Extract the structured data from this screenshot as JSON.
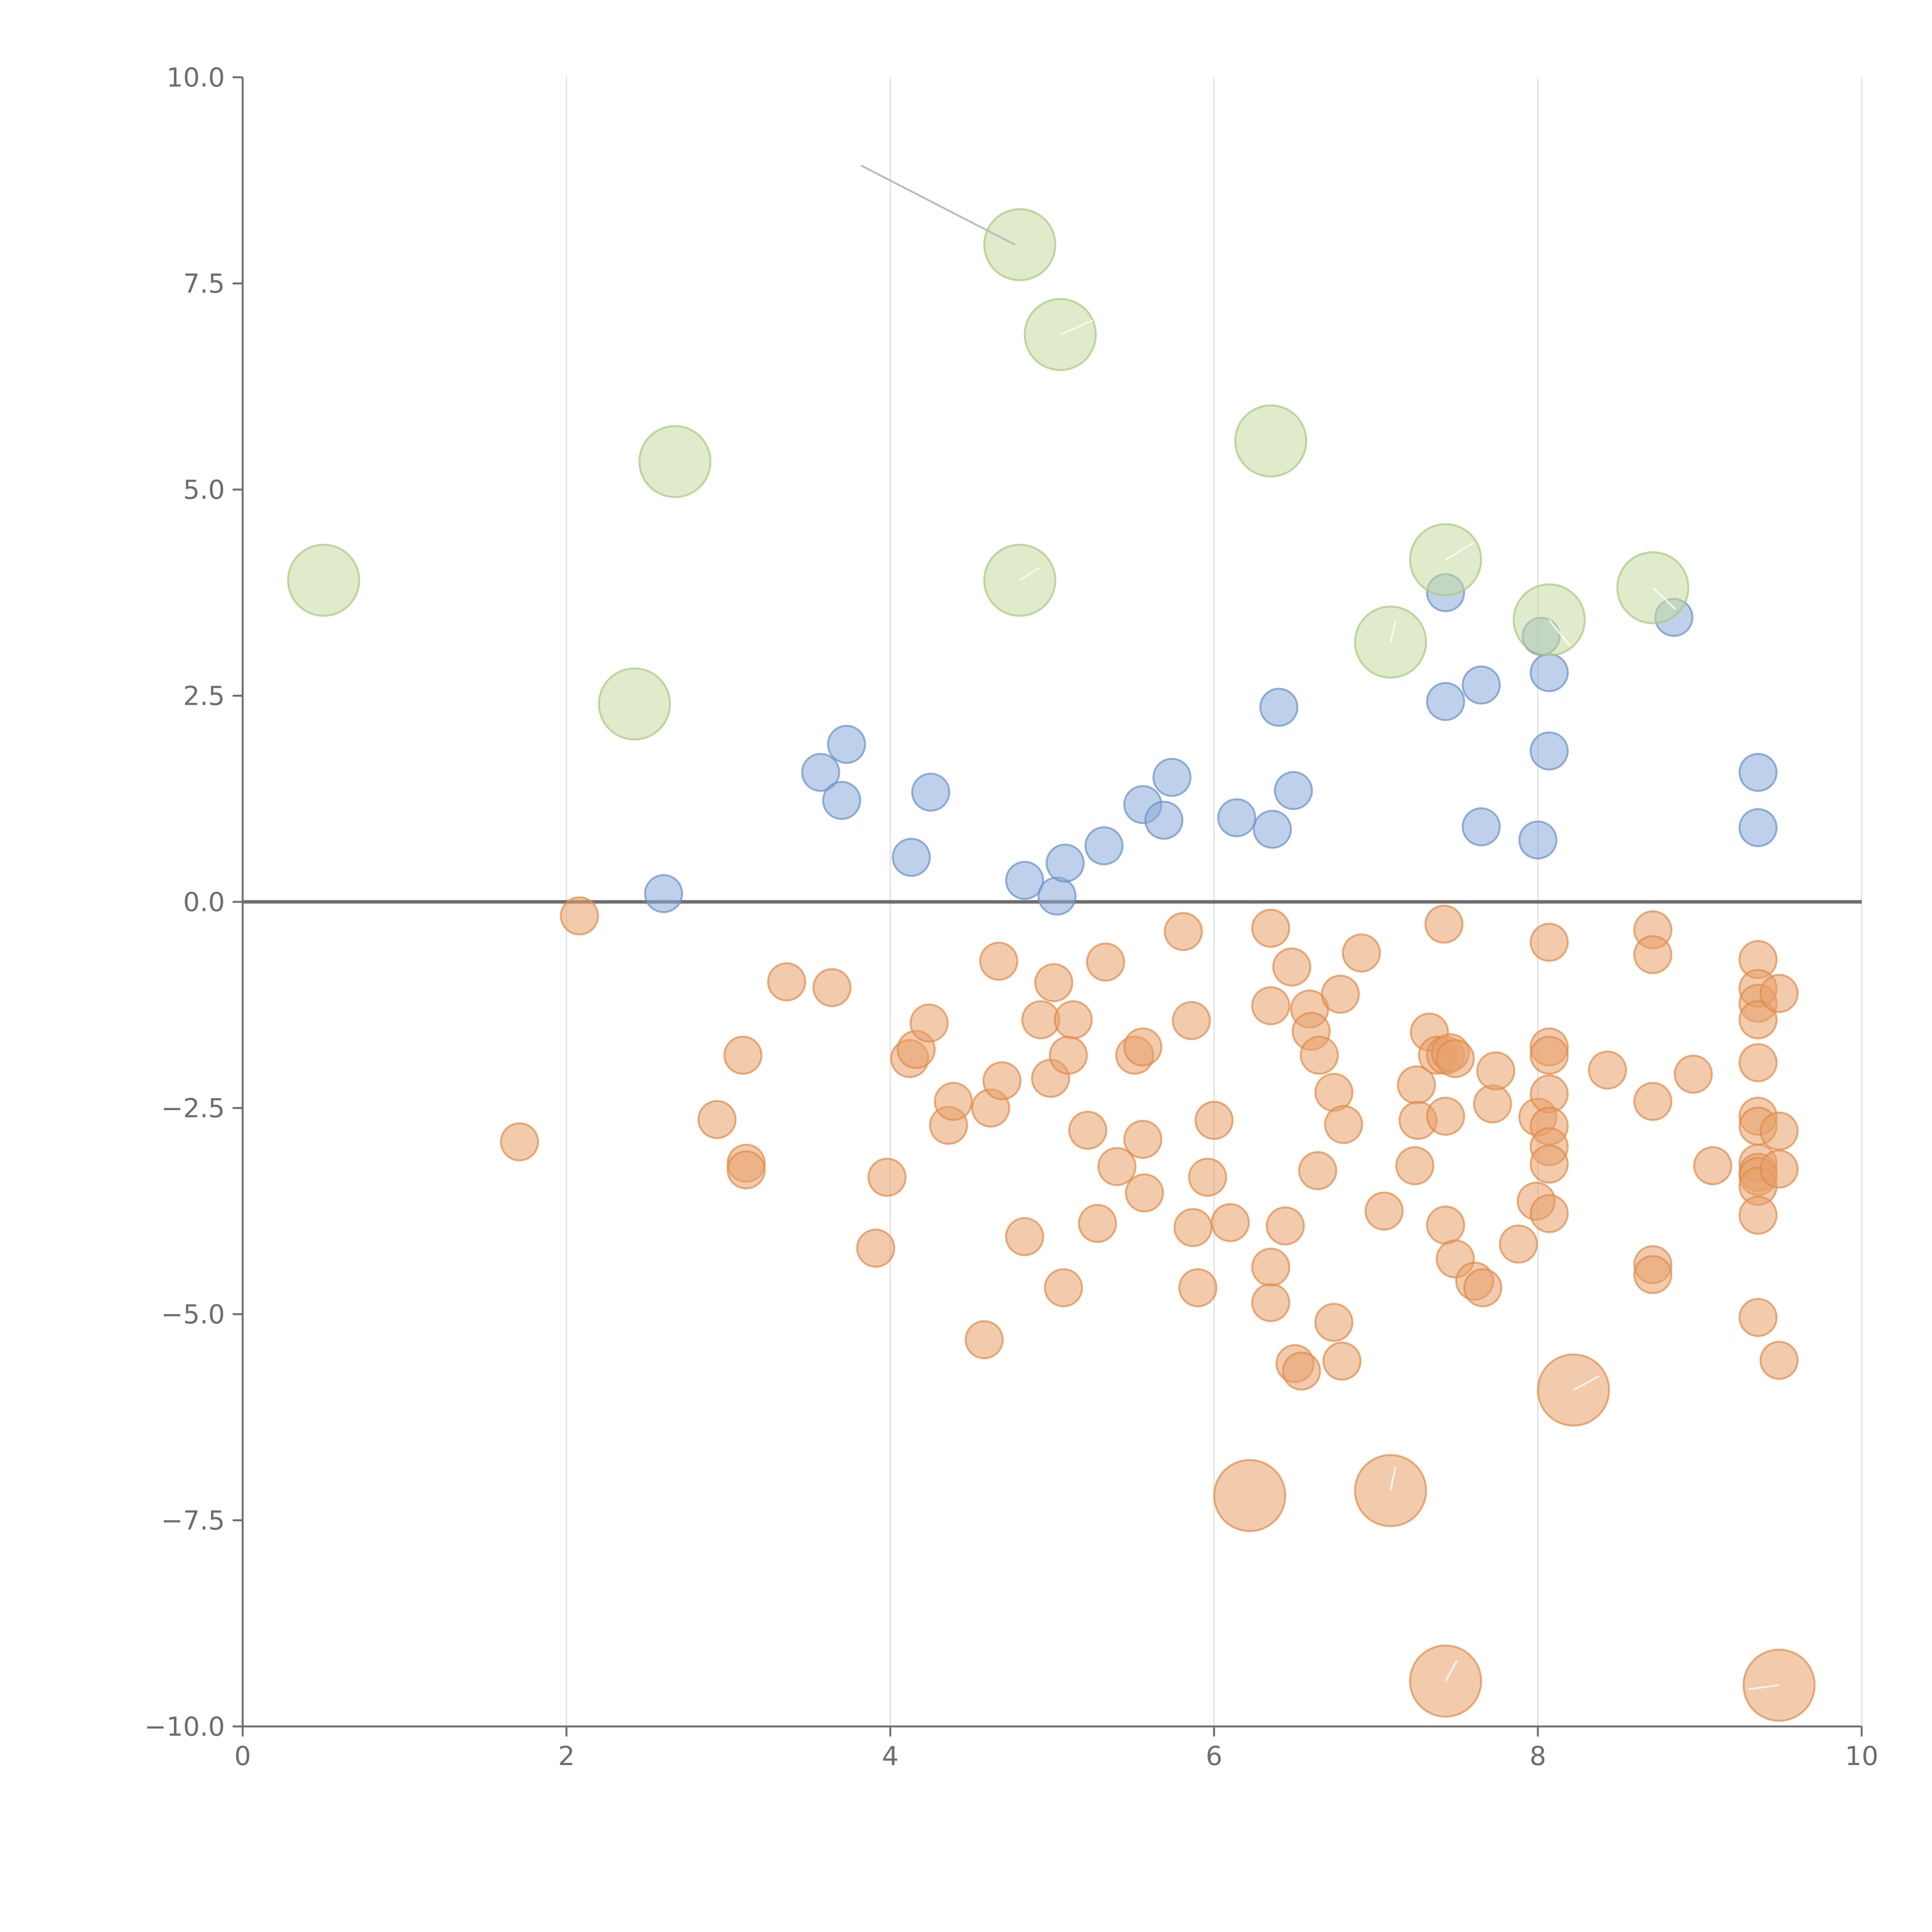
{
  "chart_data": {
    "type": "scatter",
    "title": "",
    "xlabel": "",
    "ylabel": "",
    "xlim": [
      0,
      10
    ],
    "ylim": [
      -10,
      10
    ],
    "grid": "vertical",
    "x_ticks": [
      0,
      2,
      4,
      6,
      8,
      10
    ],
    "x_tick_labels": [
      "0",
      "2",
      "4",
      "6",
      "8",
      "10"
    ],
    "y_ticks": [
      10,
      7.5,
      5,
      2.5,
      0,
      -2.5,
      -5,
      -7.5,
      -10
    ],
    "y_tick_labels": [
      "10.0",
      "7.5",
      "5.0",
      "2.5",
      "0.0",
      "−2.5",
      "−5.0",
      "−7.5",
      "−10.0"
    ],
    "reference_line_y": 0,
    "series": [
      {
        "name": "orange",
        "color": "#e8a06a",
        "stroke": "#e08a48",
        "size": "small",
        "points": [
          [
            2.08,
            -0.17
          ],
          [
            1.71,
            -2.91
          ],
          [
            2.93,
            -2.64
          ],
          [
            3.09,
            -1.86
          ],
          [
            3.11,
            -3.17
          ],
          [
            3.11,
            -3.25
          ],
          [
            3.36,
            -0.97
          ],
          [
            3.64,
            -1.04
          ],
          [
            3.91,
            -4.2
          ],
          [
            3.98,
            -3.34
          ],
          [
            4.12,
            -1.9
          ],
          [
            4.16,
            -1.79
          ],
          [
            4.24,
            -1.47
          ],
          [
            4.36,
            -2.71
          ],
          [
            4.39,
            -2.42
          ],
          [
            4.58,
            -5.31
          ],
          [
            4.62,
            -2.5
          ],
          [
            4.67,
            -0.72
          ],
          [
            4.69,
            -2.17
          ],
          [
            4.83,
            -4.06
          ],
          [
            4.93,
            -1.43
          ],
          [
            4.99,
            -2.14
          ],
          [
            5.01,
            -0.98
          ],
          [
            5.07,
            -4.68
          ],
          [
            5.1,
            -1.86
          ],
          [
            5.13,
            -1.43
          ],
          [
            5.22,
            -2.77
          ],
          [
            5.28,
            -3.9
          ],
          [
            5.33,
            -0.73
          ],
          [
            5.4,
            -3.21
          ],
          [
            5.51,
            -1.86
          ],
          [
            5.56,
            -1.76
          ],
          [
            5.56,
            -2.88
          ],
          [
            5.57,
            -3.53
          ],
          [
            5.81,
            -0.36
          ],
          [
            5.86,
            -1.44
          ],
          [
            5.87,
            -3.95
          ],
          [
            5.9,
            -4.68
          ],
          [
            5.96,
            -3.34
          ],
          [
            6.0,
            -2.65
          ],
          [
            6.1,
            -3.89
          ],
          [
            6.35,
            -0.32
          ],
          [
            6.35,
            -1.26
          ],
          [
            6.35,
            -4.43
          ],
          [
            6.35,
            -4.86
          ],
          [
            6.44,
            -3.93
          ],
          [
            6.48,
            -0.79
          ],
          [
            6.5,
            -5.6
          ],
          [
            6.54,
            -5.69
          ],
          [
            6.59,
            -1.3
          ],
          [
            6.6,
            -1.57
          ],
          [
            6.64,
            -3.26
          ],
          [
            6.65,
            -1.86
          ],
          [
            6.74,
            -2.31
          ],
          [
            6.74,
            -5.1
          ],
          [
            6.78,
            -1.12
          ],
          [
            6.79,
            -5.57
          ],
          [
            6.8,
            -2.7
          ],
          [
            6.91,
            -0.62
          ],
          [
            7.05,
            -3.75
          ],
          [
            7.24,
            -3.2
          ],
          [
            7.25,
            -2.22
          ],
          [
            7.26,
            -2.65
          ],
          [
            7.33,
            -1.58
          ],
          [
            7.38,
            -1.86
          ],
          [
            7.42,
            -0.27
          ],
          [
            7.43,
            -1.86
          ],
          [
            7.43,
            -2.6
          ],
          [
            7.43,
            -3.92
          ],
          [
            7.46,
            -1.83
          ],
          [
            7.49,
            -1.9
          ],
          [
            7.49,
            -4.33
          ],
          [
            7.61,
            -4.6
          ],
          [
            7.66,
            -4.68
          ],
          [
            7.72,
            -2.45
          ],
          [
            7.74,
            -2.05
          ],
          [
            7.88,
            -4.15
          ],
          [
            7.99,
            -3.63
          ],
          [
            8.0,
            -2.61
          ],
          [
            8.07,
            -0.49
          ],
          [
            8.07,
            -1.76
          ],
          [
            8.07,
            -1.86
          ],
          [
            8.07,
            -2.33
          ],
          [
            8.07,
            -2.72
          ],
          [
            8.07,
            -2.97
          ],
          [
            8.07,
            -3.18
          ],
          [
            8.07,
            -3.78
          ],
          [
            8.43,
            -2.04
          ],
          [
            8.71,
            -0.34
          ],
          [
            8.71,
            -0.64
          ],
          [
            8.71,
            -2.42
          ],
          [
            8.71,
            -4.4
          ],
          [
            8.71,
            -4.52
          ],
          [
            8.96,
            -2.09
          ],
          [
            9.08,
            -3.2
          ],
          [
            9.36,
            -0.7
          ],
          [
            9.36,
            -1.05
          ],
          [
            9.36,
            -1.23
          ],
          [
            9.36,
            -1.43
          ],
          [
            9.36,
            -1.95
          ],
          [
            9.36,
            -2.6
          ],
          [
            9.36,
            -2.72
          ],
          [
            9.36,
            -3.17
          ],
          [
            9.36,
            -3.28
          ],
          [
            9.36,
            -3.33
          ],
          [
            9.36,
            -3.45
          ],
          [
            9.36,
            -3.8
          ],
          [
            9.36,
            -5.04
          ],
          [
            9.49,
            -1.11
          ],
          [
            9.49,
            -2.78
          ],
          [
            9.49,
            -3.24
          ],
          [
            9.49,
            -5.56
          ]
        ]
      },
      {
        "name": "orange-large",
        "color": "#e8a06a",
        "stroke": "#e08a48",
        "size": "large",
        "points": [
          [
            6.22,
            -7.2
          ],
          [
            7.09,
            -7.14
          ],
          [
            8.22,
            -5.92
          ],
          [
            7.43,
            -9.45
          ],
          [
            9.49,
            -9.5
          ]
        ]
      },
      {
        "name": "blue",
        "color": "#8aabd8",
        "stroke": "#6a90c8",
        "size": "small",
        "points": [
          [
            2.6,
            0.1
          ],
          [
            3.57,
            1.57
          ],
          [
            3.7,
            1.23
          ],
          [
            3.73,
            1.91
          ],
          [
            4.13,
            0.54
          ],
          [
            4.25,
            1.33
          ],
          [
            4.83,
            0.26
          ],
          [
            5.03,
            0.07
          ],
          [
            5.08,
            0.47
          ],
          [
            5.32,
            0.68
          ],
          [
            5.56,
            1.18
          ],
          [
            5.69,
            0.99
          ],
          [
            5.74,
            1.51
          ],
          [
            6.14,
            1.02
          ],
          [
            6.36,
            0.88
          ],
          [
            6.4,
            2.36
          ],
          [
            6.49,
            1.35
          ],
          [
            7.43,
            2.43
          ],
          [
            7.43,
            3.75
          ],
          [
            7.65,
            2.63
          ],
          [
            7.65,
            0.91
          ],
          [
            8.0,
            0.75
          ],
          [
            8.02,
            3.22
          ],
          [
            8.07,
            2.78
          ],
          [
            8.07,
            1.83
          ],
          [
            8.84,
            3.45
          ],
          [
            9.36,
            1.57
          ],
          [
            9.36,
            0.9
          ]
        ]
      },
      {
        "name": "green",
        "color": "#c4da9f",
        "stroke": "#a8c77d",
        "size": "large",
        "points": [
          [
            0.5,
            3.9
          ],
          [
            2.42,
            2.4
          ],
          [
            2.67,
            5.34
          ],
          [
            4.8,
            7.97
          ],
          [
            5.05,
            6.88
          ],
          [
            4.8,
            3.9
          ],
          [
            6.35,
            5.59
          ],
          [
            7.09,
            3.15
          ],
          [
            7.43,
            4.15
          ],
          [
            8.07,
            3.42
          ],
          [
            8.71,
            3.81
          ]
        ]
      }
    ],
    "annotations": [
      {
        "type": "leader-line",
        "from": [
          3.82,
          8.93
        ],
        "to": [
          4.77,
          7.97
        ]
      }
    ]
  }
}
